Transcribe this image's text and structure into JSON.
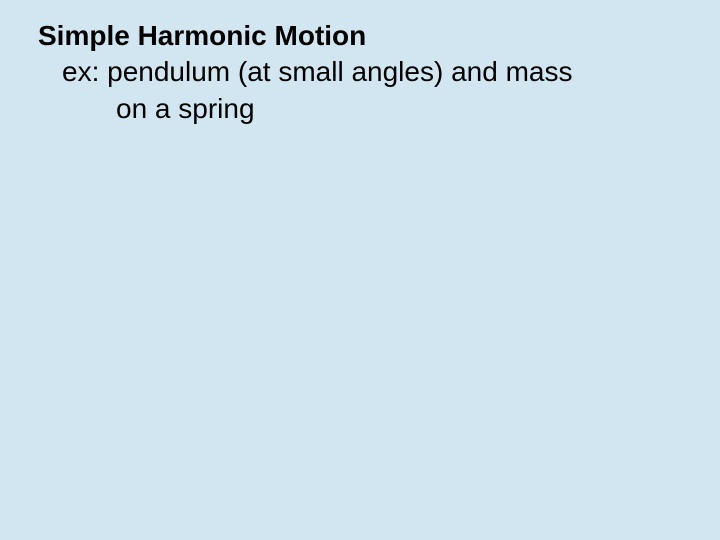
{
  "slide": {
    "title": "Simple Harmonic Motion",
    "example_line1": "ex: pendulum (at small angles) and mass",
    "example_line2": "on a spring",
    "background_color": "#d1e6f0",
    "text_color": "#000000",
    "title_fontsize": 28,
    "body_fontsize": 28,
    "font_family": "Arial"
  }
}
